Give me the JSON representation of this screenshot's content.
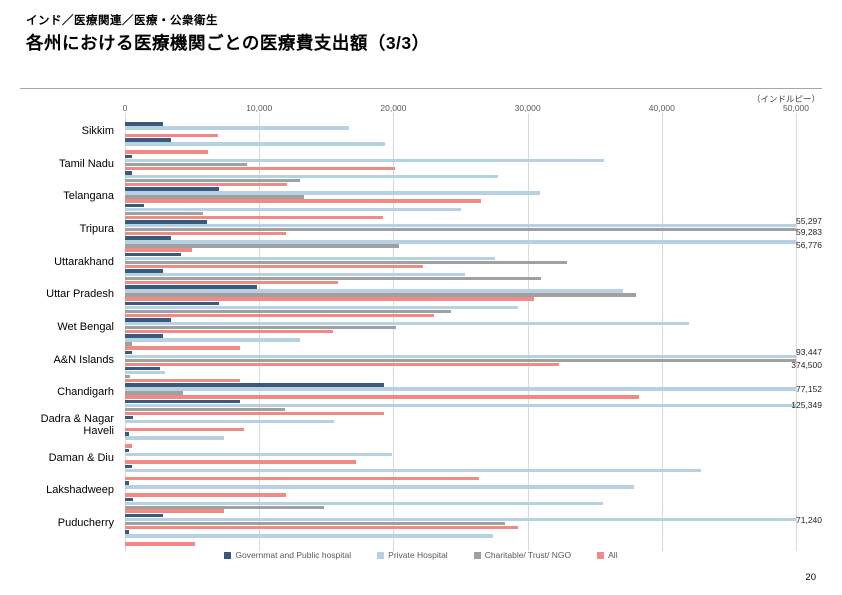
{
  "header": {
    "breadcrumb": "インド／医療関連／医療・公衆衛生",
    "title": "各州における医療機関ごとの医療費支出額（3/3）"
  },
  "page_number": "20",
  "chart_data": {
    "type": "bar",
    "orientation": "horizontal",
    "unit_label": "（インドルピー）",
    "xlim": [
      0,
      50000
    ],
    "x_ticks": [
      "0",
      "10,000",
      "20,000",
      "30,000",
      "40,000",
      "50,000"
    ],
    "grid": true,
    "legend_position": "bottom",
    "series_names": [
      "Governmat and Public hospital",
      "Private Hospital",
      "Charitable/ Trust/ NGO",
      "All"
    ],
    "series_colors": [
      "#3a5a7c",
      "#b7d0e2",
      "#a0a0a0",
      "#f08a85"
    ],
    "note": "Each state has two unlabeled bar groups; series order within each group follows series_names. Bars exceeding 50,000 are clipped at the axis edge and annotated with their value.",
    "categories": [
      "Sikkim",
      "Tamil Nadu",
      "Telangana",
      "Tripura",
      "Uttarakhand",
      "Uttar Pradesh",
      "Wet Bengal",
      "A&N Islands",
      "Chandigarh",
      "Dadra & Nagar Haveli",
      "Daman & Diu",
      "Lakshadweep",
      "Puducherry"
    ],
    "states": [
      {
        "name": "Sikkim",
        "groups": [
          [
            2800,
            16700,
            0,
            6900
          ],
          [
            3400,
            19400,
            0,
            6200
          ]
        ]
      },
      {
        "name": "Tamil Nadu",
        "groups": [
          [
            550,
            35700,
            9100,
            20100
          ],
          [
            500,
            27800,
            13000,
            12100
          ]
        ]
      },
      {
        "name": "Telangana",
        "groups": [
          [
            7000,
            30900,
            13350,
            26550
          ],
          [
            1400,
            25000,
            5800,
            19200
          ]
        ]
      },
      {
        "name": "Tripura",
        "groups": [
          [
            6100,
            55297,
            59283,
            12000
          ],
          [
            3400,
            56776,
            20400,
            5000
          ]
        ]
      },
      {
        "name": "Uttarakhand",
        "groups": [
          [
            4200,
            27600,
            32900,
            22200
          ],
          [
            2800,
            25300,
            31000,
            15900
          ]
        ]
      },
      {
        "name": "Uttar Pradesh",
        "groups": [
          [
            9800,
            37100,
            38100,
            30500
          ],
          [
            7000,
            29300,
            24300,
            23000
          ]
        ]
      },
      {
        "name": "Wet Bengal",
        "groups": [
          [
            3400,
            42000,
            20200,
            15500
          ],
          [
            2800,
            13000,
            500,
            8600
          ]
        ]
      },
      {
        "name": "A&N Islands",
        "groups": [
          [
            500,
            93447,
            374500,
            32300
          ],
          [
            2600,
            3000,
            400,
            8600
          ]
        ]
      },
      {
        "name": "Chandigarh",
        "groups": [
          [
            19300,
            77152,
            4300,
            38300
          ],
          [
            8600,
            125349,
            11900,
            19300
          ]
        ]
      },
      {
        "name": "Dadra & Nagar Haveli",
        "groups": [
          [
            600,
            15600,
            0,
            8900
          ],
          [
            300,
            7400,
            0,
            550
          ]
        ]
      },
      {
        "name": "Daman & Diu",
        "groups": [
          [
            300,
            19900,
            0,
            17200
          ],
          [
            500,
            42900,
            0,
            26400
          ]
        ]
      },
      {
        "name": "Lakshadweep",
        "groups": [
          [
            300,
            37900,
            0,
            12000
          ],
          [
            600,
            35600,
            14800,
            7400
          ]
        ]
      },
      {
        "name": "Puducherry",
        "groups": [
          [
            2800,
            71240,
            28300,
            29300
          ],
          [
            300,
            27400,
            0,
            5200
          ]
        ]
      }
    ],
    "clipped_value_labels": [
      "55,297",
      "59,283",
      "56,776",
      "93,447",
      "374,500",
      "77,152",
      "125,349",
      "71,240"
    ],
    "legend": [
      {
        "label": "Governmat and Public hospital",
        "color": "#3a5a7c"
      },
      {
        "label": "Private Hospital",
        "color": "#b7d0e2"
      },
      {
        "label": "Charitable/ Trust/ NGO",
        "color": "#a0a0a0"
      },
      {
        "label": "All",
        "color": "#f08a85"
      }
    ]
  }
}
